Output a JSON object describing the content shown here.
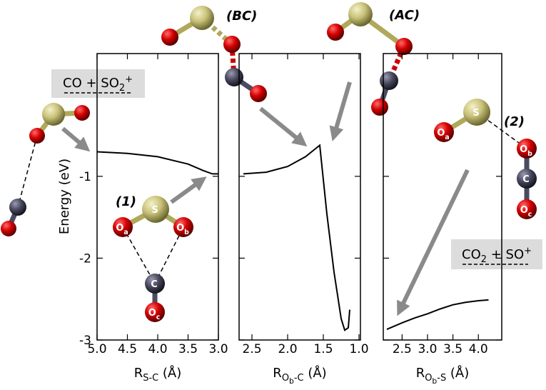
{
  "chart_data": [
    {
      "type": "line",
      "y_label": "Energy (eV)",
      "x_label": [
        {
          "t": "R"
        },
        {
          "t": "S-C",
          "s": "sub"
        },
        {
          "t": " (Å)"
        }
      ],
      "xlim": [
        5.0,
        3.0
      ],
      "ylim": [
        -3.0,
        0.5
      ],
      "xticks": [
        {
          "value": 5,
          "label": "5.0"
        },
        4.5,
        {
          "value": 4,
          "label": "4.0"
        },
        3.5,
        {
          "value": 3,
          "label": "3.0"
        }
      ],
      "yticks": [
        -1,
        -2,
        -3
      ],
      "ytick_labels": true,
      "series": [
        {
          "color": "#000000",
          "x": [
            5.0,
            4.5,
            4.0,
            3.5,
            3.25,
            3.1,
            3.0
          ],
          "values": [
            -0.7,
            -0.72,
            -0.76,
            -0.85,
            -0.93,
            -0.97,
            -0.97
          ]
        }
      ]
    },
    {
      "type": "line",
      "x_label": [
        {
          "t": "R"
        },
        {
          "t": "O",
          "s": "sub"
        },
        {
          "t": "b",
          "s": "sub2"
        },
        {
          "t": "-C",
          "s": "sub"
        },
        {
          "t": " (Å)"
        }
      ],
      "xlim": [
        2.68,
        0.98
      ],
      "ylim": [
        -3.0,
        0.5
      ],
      "xticks": [
        2.5,
        {
          "value": 2,
          "label": "2.0"
        },
        1.5,
        {
          "value": 1,
          "label": "1.0"
        }
      ],
      "yticks": [
        -1,
        -2,
        -3
      ],
      "ytick_labels": false,
      "series": [
        {
          "color": "#000000",
          "x": [
            2.62,
            2.3,
            2.0,
            1.75,
            1.62,
            1.55,
            1.45,
            1.35,
            1.25,
            1.2,
            1.15,
            1.13
          ],
          "values": [
            -0.97,
            -0.95,
            -0.88,
            -0.76,
            -0.67,
            -0.62,
            -1.46,
            -2.17,
            -2.74,
            -2.88,
            -2.85,
            -2.63
          ]
        }
      ]
    },
    {
      "type": "line",
      "x_label": [
        {
          "t": "R"
        },
        {
          "t": "O",
          "s": "sub"
        },
        {
          "t": "b",
          "s": "sub2"
        },
        {
          "t": "-S",
          "s": "sub"
        },
        {
          "t": " (Å)"
        }
      ],
      "xlim": [
        2.13,
        4.46
      ],
      "ylim": [
        -3.0,
        0.5
      ],
      "xticks": [
        2.5,
        {
          "value": 3,
          "label": "3.0"
        },
        3.5,
        {
          "value": 4,
          "label": "4.0"
        }
      ],
      "yticks": [
        -1,
        -2,
        -3
      ],
      "ytick_labels": false,
      "series": [
        {
          "color": "#000000",
          "x": [
            2.2,
            2.5,
            2.75,
            3.0,
            3.25,
            3.5,
            3.75,
            4.0,
            4.2
          ],
          "values": [
            -2.87,
            -2.79,
            -2.73,
            -2.68,
            -2.62,
            -2.57,
            -2.54,
            -2.52,
            -2.51
          ]
        }
      ]
    }
  ],
  "annotations": {
    "bc": "(BC)",
    "ac": "(AC)",
    "one": "(1)",
    "two": "(2)",
    "left_box": [
      {
        "t": "CO + SO"
      },
      {
        "t": "2",
        "s": "sub"
      },
      {
        "t": "+",
        "s": "sup"
      }
    ],
    "right_box": [
      {
        "t": "CO"
      },
      {
        "t": "2",
        "s": "sub"
      },
      {
        "t": " + SO"
      },
      {
        "t": "+",
        "s": "sup"
      }
    ],
    "molecule1": {
      "s": "S",
      "oa": [
        {
          "t": "O"
        },
        {
          "t": "a",
          "s": "sub"
        }
      ],
      "ob": [
        {
          "t": "O"
        },
        {
          "t": "b",
          "s": "sub"
        }
      ],
      "c": "C",
      "oc": [
        {
          "t": "O"
        },
        {
          "t": "c",
          "s": "sub"
        }
      ]
    },
    "molecule2": {
      "s": "S",
      "oa": [
        {
          "t": "O"
        },
        {
          "t": "a",
          "s": "sub"
        }
      ],
      "ob": [
        {
          "t": "O"
        },
        {
          "t": "b",
          "s": "sub"
        }
      ],
      "c": "C",
      "oc": [
        {
          "t": "O"
        },
        {
          "t": "c",
          "s": "sub"
        }
      ]
    }
  }
}
